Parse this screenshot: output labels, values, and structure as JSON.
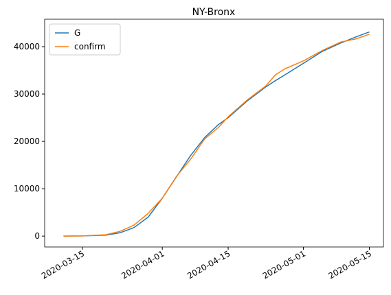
{
  "chart_data": {
    "type": "line",
    "title": "NY-Bronx",
    "x": [
      "2020-03-11",
      "2020-03-15",
      "2020-03-20",
      "2020-03-23",
      "2020-03-26",
      "2020-03-29",
      "2020-04-01",
      "2020-04-04",
      "2020-04-07",
      "2020-04-10",
      "2020-04-13",
      "2020-04-15",
      "2020-04-19",
      "2020-04-23",
      "2020-04-25",
      "2020-04-27",
      "2020-05-01",
      "2020-05-05",
      "2020-05-09",
      "2020-05-12",
      "2020-05-15"
    ],
    "series": [
      {
        "name": "G",
        "color": "#1f77b4",
        "values": [
          0,
          30,
          200,
          700,
          1800,
          4000,
          8000,
          12500,
          17000,
          20800,
          23600,
          25000,
          28500,
          31500,
          32800,
          34000,
          36500,
          39000,
          40800,
          42000,
          43100
        ]
      },
      {
        "name": "confirm",
        "color": "#ff7f0e",
        "values": [
          0,
          30,
          300,
          1000,
          2300,
          4800,
          8000,
          12600,
          16200,
          20500,
          23000,
          25200,
          28700,
          31700,
          34000,
          35300,
          37000,
          39200,
          41000,
          41600,
          42600
        ]
      }
    ],
    "xlim": [
      "2020-03-07",
      "2020-05-18"
    ],
    "xticks": [
      "2020-03-15",
      "2020-04-01",
      "2020-04-15",
      "2020-05-01",
      "2020-05-15"
    ],
    "ylim": [
      -2300,
      45800
    ],
    "yticks": [
      0,
      10000,
      20000,
      30000,
      40000
    ],
    "legend": "upper left"
  }
}
